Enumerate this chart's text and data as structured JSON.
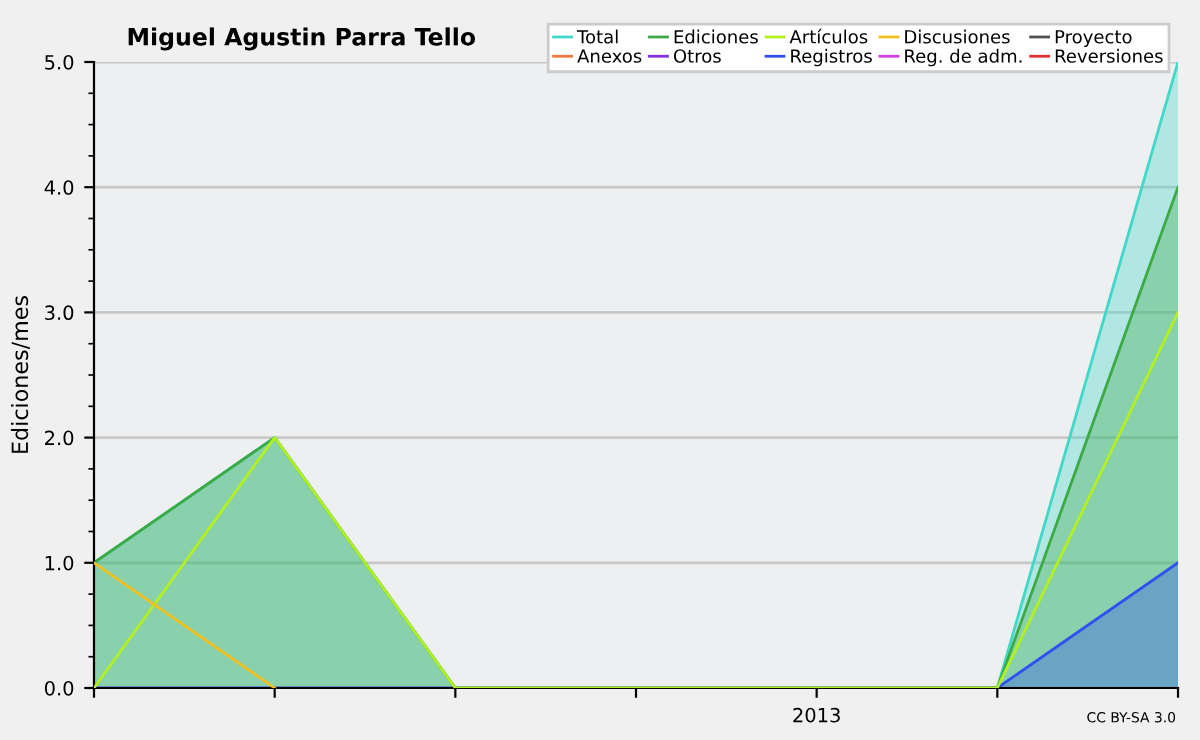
{
  "chart_data": {
    "type": "line",
    "title": "Miguel Agustin Parra Tello",
    "ylabel": "Ediciones/mes",
    "categories": [
      null,
      null,
      null,
      null,
      "2013",
      null,
      null
    ],
    "series": [
      {
        "name": "Total",
        "color": "#40d8c8",
        "type": "area",
        "values": [
          1,
          2,
          0,
          0,
          0,
          0,
          5
        ]
      },
      {
        "name": "Ediciones",
        "color": "#3caa44",
        "type": "area",
        "values": [
          1,
          2,
          0,
          0,
          0,
          0,
          4
        ]
      },
      {
        "name": "Artículos",
        "color": "#b4f020",
        "values": [
          0,
          2,
          0,
          0,
          0,
          0,
          3
        ]
      },
      {
        "name": "Discusiones",
        "color": "#f0c020",
        "values": [
          1,
          0,
          null,
          null,
          null,
          null,
          null
        ]
      },
      {
        "name": "Proyecto",
        "color": "#505050",
        "values": [
          null,
          null,
          null,
          null,
          null,
          null,
          null
        ]
      },
      {
        "name": "Anexos",
        "color": "#f07840",
        "values": [
          null,
          null,
          null,
          null,
          null,
          null,
          null
        ]
      },
      {
        "name": "Otros",
        "color": "#8030e0",
        "values": [
          null,
          null,
          null,
          null,
          null,
          null,
          null
        ]
      },
      {
        "name": "Registros",
        "color": "#3050f0",
        "type": "area",
        "values": [
          0,
          0,
          0,
          0,
          0,
          0,
          1
        ]
      },
      {
        "name": "Reg. de adm.",
        "color": "#d040e0",
        "values": [
          null,
          null,
          null,
          null,
          null,
          null,
          null
        ]
      },
      {
        "name": "Reversiones",
        "color": "#e03030",
        "values": [
          null,
          null,
          null,
          null,
          null,
          null,
          null
        ]
      }
    ],
    "ylim": [
      0,
      5
    ],
    "yticks": [
      {
        "value": 0,
        "label": "0.0"
      },
      {
        "value": 1,
        "label": "1.0"
      },
      {
        "value": 2,
        "label": "2.0"
      },
      {
        "value": 3,
        "label": "3.0"
      },
      {
        "value": 4,
        "label": "4.0"
      },
      {
        "value": 5,
        "label": "5.0"
      }
    ],
    "grid": "y",
    "legend": "top right",
    "marker": "none",
    "line_style": "solid",
    "annotations": [
      "CC BY-SA 3.0"
    ]
  }
}
